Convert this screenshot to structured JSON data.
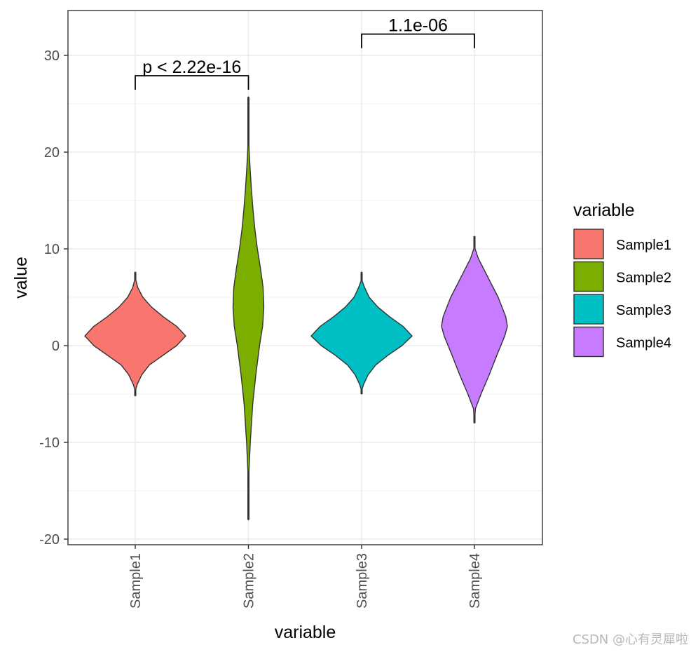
{
  "chart_data": {
    "type": "violin",
    "xlabel": "variable",
    "ylabel": "value",
    "ylim": [
      -20.5,
      34.5
    ],
    "yticks": [
      -20,
      -10,
      0,
      10,
      20,
      30
    ],
    "categories": [
      "Sample1",
      "Sample2",
      "Sample3",
      "Sample4"
    ],
    "series": [
      {
        "name": "Sample1",
        "color": "#F8766D",
        "min": -5.2,
        "max": 7.6,
        "profile": [
          [
            -5.2,
            0.0
          ],
          [
            -4.5,
            0.01
          ],
          [
            -4.0,
            0.04
          ],
          [
            -3.0,
            0.13
          ],
          [
            -2.0,
            0.28
          ],
          [
            -1.0,
            0.55
          ],
          [
            0.0,
            0.82
          ],
          [
            1.0,
            1.0
          ],
          [
            2.0,
            0.82
          ],
          [
            3.0,
            0.55
          ],
          [
            4.0,
            0.32
          ],
          [
            5.0,
            0.15
          ],
          [
            6.0,
            0.05
          ],
          [
            6.8,
            0.01
          ],
          [
            7.6,
            0.0
          ]
        ]
      },
      {
        "name": "Sample2",
        "color": "#7CAE00",
        "min": -18.0,
        "max": 25.7,
        "profile": [
          [
            -18.0,
            0.0
          ],
          [
            -13.5,
            0.02
          ],
          [
            -10.0,
            0.12
          ],
          [
            -6.0,
            0.28
          ],
          [
            -3.0,
            0.48
          ],
          [
            0.0,
            0.72
          ],
          [
            2.0,
            0.92
          ],
          [
            4.0,
            1.0
          ],
          [
            6.0,
            0.95
          ],
          [
            8.0,
            0.78
          ],
          [
            10.0,
            0.58
          ],
          [
            12.0,
            0.42
          ],
          [
            14.0,
            0.3
          ],
          [
            16.0,
            0.2
          ],
          [
            18.0,
            0.12
          ],
          [
            20.0,
            0.05
          ],
          [
            21.5,
            0.02
          ],
          [
            25.7,
            0.0
          ]
        ]
      },
      {
        "name": "Sample3",
        "color": "#00BFC4",
        "min": -5.0,
        "max": 7.6,
        "profile": [
          [
            -5.0,
            0.0
          ],
          [
            -4.5,
            0.01
          ],
          [
            -4.0,
            0.04
          ],
          [
            -3.0,
            0.13
          ],
          [
            -2.0,
            0.28
          ],
          [
            -1.0,
            0.52
          ],
          [
            0.0,
            0.8
          ],
          [
            1.0,
            1.0
          ],
          [
            2.0,
            0.82
          ],
          [
            3.0,
            0.55
          ],
          [
            4.0,
            0.32
          ],
          [
            5.0,
            0.15
          ],
          [
            6.0,
            0.06
          ],
          [
            6.7,
            0.01
          ],
          [
            7.6,
            0.0
          ]
        ]
      },
      {
        "name": "Sample4",
        "color": "#C77CFF",
        "min": -8.0,
        "max": 11.3,
        "profile": [
          [
            -8.0,
            0.0
          ],
          [
            -6.5,
            0.03
          ],
          [
            -5.0,
            0.2
          ],
          [
            -3.0,
            0.45
          ],
          [
            -1.0,
            0.68
          ],
          [
            1.0,
            0.92
          ],
          [
            2.0,
            1.0
          ],
          [
            3.0,
            0.95
          ],
          [
            5.0,
            0.72
          ],
          [
            7.0,
            0.42
          ],
          [
            9.0,
            0.12
          ],
          [
            10.0,
            0.02
          ],
          [
            11.3,
            0.0
          ]
        ]
      }
    ],
    "comparisons": [
      {
        "groups": [
          "Sample1",
          "Sample2"
        ],
        "label": "p < 2.22e-16",
        "y": 27.9
      },
      {
        "groups": [
          "Sample3",
          "Sample4"
        ],
        "label": "1.1e-06",
        "y": 32.2
      }
    ],
    "legend": {
      "title": "variable",
      "placement": "right",
      "items": [
        {
          "label": "Sample1",
          "color": "#F8766D"
        },
        {
          "label": "Sample2",
          "color": "#7CAE00"
        },
        {
          "label": "Sample3",
          "color": "#00BFC4"
        },
        {
          "label": "Sample4",
          "color": "#C77CFF"
        }
      ]
    },
    "grid": true
  },
  "watermark": "CSDN @心有灵犀啦"
}
